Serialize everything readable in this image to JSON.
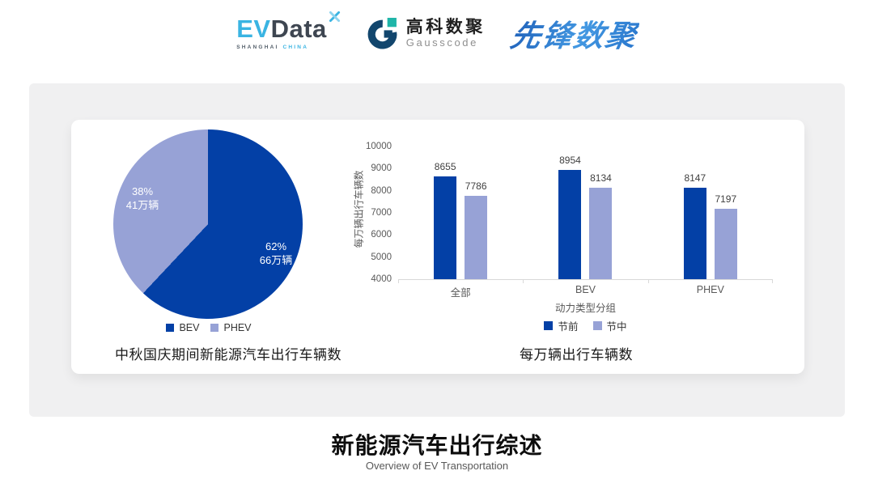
{
  "header": {
    "evdata": {
      "part1": "EV",
      "part2": "Data",
      "sub1": "SHANGHAI",
      "sub2": "CHINA"
    },
    "gausscode": {
      "name_cn": "高科数聚",
      "name_en": "Gausscode"
    },
    "pioneer": {
      "name": "先锋数聚"
    }
  },
  "footer": {
    "title": "新能源汽车出行综述",
    "subtitle": "Overview of EV Transportation"
  },
  "colors": {
    "series_dark_blue": "#0340a6",
    "series_light_purple": "#97a2d6",
    "panel_bg": "#f0f0f1",
    "evdata_cyan": "#3ab4e2",
    "evdata_dark": "#3e4651",
    "gauss_navy": "#12466d",
    "gauss_teal": "#1fb5a8",
    "pioneer_blue": "#2e7ccc"
  },
  "chart_data": [
    {
      "type": "pie",
      "title": "中秋国庆期间新能源汽车出行车辆数",
      "labels": [
        "BEV",
        "PHEV"
      ],
      "values_percent": [
        62,
        38
      ],
      "values_absolute": [
        "66万辆",
        "41万辆"
      ],
      "slice_annotations": [
        {
          "percent": "62%",
          "amount": "66万辆"
        },
        {
          "percent": "38%",
          "amount": "41万辆"
        }
      ],
      "colors": [
        "#0340a6",
        "#97a2d6"
      ],
      "start_angle": "top",
      "direction": "clockwise",
      "legend_position": "bottom"
    },
    {
      "type": "bar",
      "title": "每万辆出行车辆数",
      "categories": [
        "全部",
        "BEV",
        "PHEV"
      ],
      "series": [
        {
          "name": "节前",
          "color": "#0340a6",
          "values": [
            8655,
            8954,
            8147
          ]
        },
        {
          "name": "节中",
          "color": "#97a2d6",
          "values": [
            7786,
            8134,
            7197
          ]
        }
      ],
      "xlabel": "动力类型分组",
      "ylabel": "每万辆出行车辆数",
      "ylim": [
        4000,
        10000
      ],
      "ytick_step": 1000,
      "yticks": [
        "10000",
        "9000",
        "8000",
        "7000",
        "6000",
        "5000",
        "4000"
      ],
      "grid": false,
      "data_labels": true,
      "legend_position": "bottom"
    }
  ]
}
